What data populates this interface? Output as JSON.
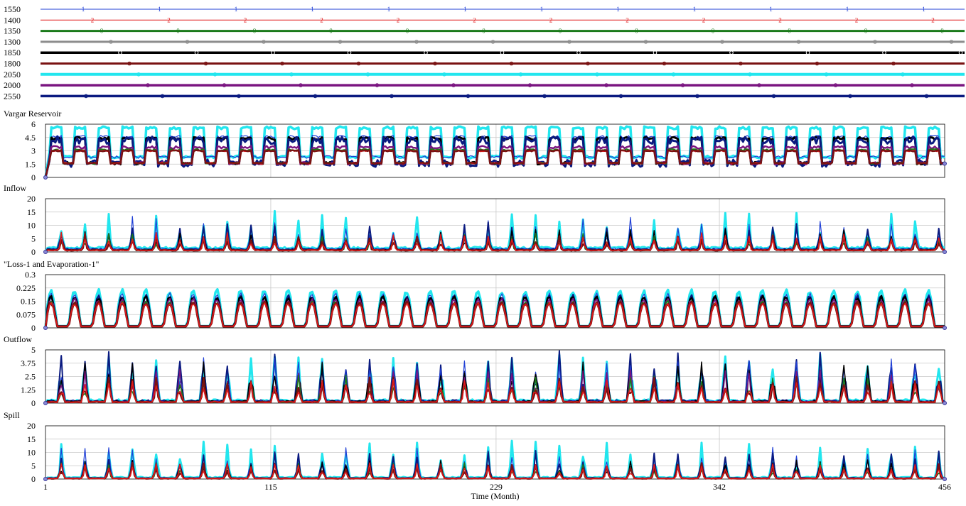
{
  "chart_data": {
    "type": "line",
    "legend": {
      "placement": "top",
      "series": [
        {
          "name": "1550",
          "color": "#1f3fd6",
          "marker": "1"
        },
        {
          "name": "1400",
          "color": "#e0191a",
          "marker": "2"
        },
        {
          "name": "1350",
          "color": "#1a7a1a",
          "marker": "0"
        },
        {
          "name": "1300",
          "color": "#8c8c8c",
          "marker": "-"
        },
        {
          "name": "1850",
          "color": "#000000",
          "marker": "5"
        },
        {
          "name": "1800",
          "color": "#7a1212",
          "marker": "0"
        },
        {
          "name": "2050",
          "color": "#22e6ee",
          "marker": "0"
        },
        {
          "name": "2000",
          "color": "#7a1580",
          "marker": "0"
        },
        {
          "name": "2550",
          "color": "#0a1a80",
          "marker": "0"
        }
      ]
    },
    "x_axis": {
      "label": "Time (Month)",
      "min": 1,
      "max": 456,
      "ticks": [
        "1",
        "115",
        "229",
        "342",
        "456"
      ],
      "tick_values": [
        1,
        115,
        229,
        342,
        456
      ]
    },
    "panels": [
      {
        "title": "Vargar Reservoir",
        "yticks": [
          "6",
          "4.5",
          "3",
          "1.5",
          "0"
        ],
        "ymax": 6,
        "kind": "storage"
      },
      {
        "title": "Inflow",
        "yticks": [
          "20",
          "15",
          "10",
          "5",
          "0"
        ],
        "ymax": 20,
        "kind": "inflow"
      },
      {
        "title": "\"Loss-1 and Evaporation-1\"",
        "yticks": [
          "0.3",
          "0.225",
          "0.15",
          "0.075",
          "0"
        ],
        "ymax": 0.3,
        "kind": "evap"
      },
      {
        "title": "Outflow",
        "yticks": [
          "5",
          "3.75",
          "2.5",
          "1.25",
          "0"
        ],
        "ymax": 5,
        "kind": "outflow"
      },
      {
        "title": "Spill",
        "yticks": [
          "20",
          "15",
          "10",
          "5",
          "0"
        ],
        "ymax": 20,
        "kind": "spill"
      }
    ],
    "grid": true
  }
}
